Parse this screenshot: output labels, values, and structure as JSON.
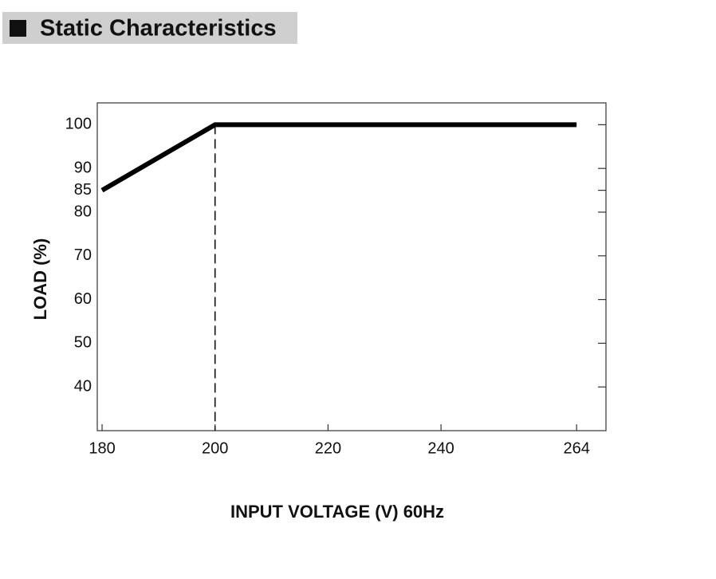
{
  "chart_data": {
    "type": "line",
    "title": "Static Characteristics",
    "x_label": "INPUT VOLTAGE (V) 60Hz",
    "y_label": "LOAD (%)",
    "x": [
      180,
      200,
      264
    ],
    "series": [
      {
        "name": "Load",
        "color": "#000000",
        "values": [
          85,
          100,
          100
        ]
      }
    ],
    "xlim": [
      179.15,
      269.2
    ],
    "xticks": [
      180,
      200,
      220,
      240,
      264
    ],
    "ylim": [
      30,
      105
    ],
    "yticks": [
      40,
      50,
      60,
      70,
      80,
      85,
      90,
      100
    ]
  }
}
